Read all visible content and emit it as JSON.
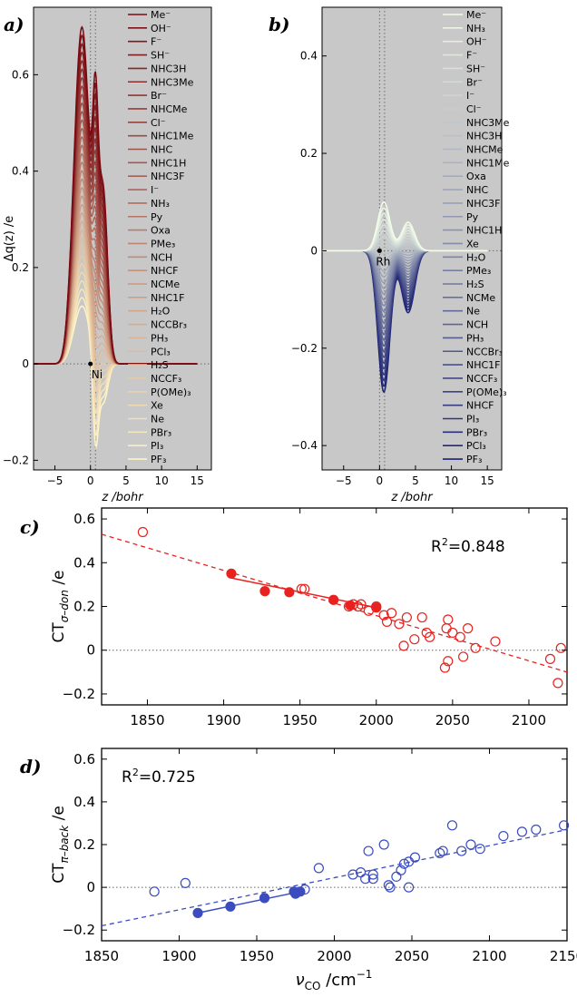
{
  "panels": {
    "a": {
      "letter": "a)",
      "ylabel": "Δq(z) /e",
      "xlabel": "z /bohr",
      "yticks": [
        "0.6",
        "0.4",
        "0.2",
        "0",
        "−0.2"
      ],
      "xticks": [
        "−5",
        "0",
        "5",
        "10",
        "15"
      ],
      "metal": "Ni",
      "legend": [
        "Me⁻",
        "OH⁻",
        "F⁻",
        "SH⁻",
        "NHC3H",
        "NHC3Me",
        "Br⁻",
        "NHCMe",
        "Cl⁻",
        "NHC1Me",
        "NHC",
        "NHC1H",
        "NHC3F",
        "I⁻",
        "NH₃",
        "Py",
        "Oxa",
        "PMe₃",
        "NCH",
        "NHCF",
        "NCMe",
        "NHC1F",
        "H₂O",
        "NCCBr₃",
        "PH₃",
        "PCl₃",
        "H₂S",
        "NCCF₃",
        "P(OMe)₃",
        "Xe",
        "Ne",
        "PBr₃",
        "PI₃",
        "PF₃"
      ]
    },
    "b": {
      "letter": "b)",
      "yticks": [
        "0.4",
        "0.2",
        "0",
        "−0.2",
        "−0.4"
      ],
      "xticks": [
        "−5",
        "0",
        "5",
        "10",
        "15"
      ],
      "xlabel": "z /bohr",
      "metal": "Rh",
      "legend": [
        "Me⁻",
        "NH₃",
        "OH⁻",
        "F⁻",
        "SH⁻",
        "Br⁻",
        "I⁻",
        "Cl⁻",
        "NHC3Me",
        "NHC3H",
        "NHCMe",
        "NHC1Me",
        "Oxa",
        "NHC",
        "NHC3F",
        "Py",
        "NHC1H",
        "Xe",
        "H₂O",
        "PMe₃",
        "H₂S",
        "NCMe",
        "Ne",
        "NCH",
        "PH₃",
        "NCCBr₃",
        "NHC1F",
        "NCCF₃",
        "P(OMe)₃",
        "NHCF",
        "PI₃",
        "PBr₃",
        "PCl₃",
        "PF₃"
      ]
    },
    "c": {
      "letter": "c)",
      "ylabel_main": "CT",
      "ylabel_sub": "σ–don",
      "ylabel_unit": " /e",
      "r2_prefix": "R",
      "r2_sup": "2",
      "r2_value": "=0.848",
      "yticks": [
        "0.6",
        "0.4",
        "0.2",
        "0",
        "−0.2"
      ],
      "xticks": [
        "1850",
        "1900",
        "1950",
        "2000",
        "2050",
        "2100"
      ]
    },
    "d": {
      "letter": "d)",
      "ylabel_main": "CT",
      "ylabel_sub": "π–back",
      "ylabel_unit": " /e",
      "r2_prefix": "R",
      "r2_sup": "2",
      "r2_value": "=0.725",
      "yticks": [
        "0.6",
        "0.4",
        "0.2",
        "0",
        "−0.2"
      ],
      "xticks": [
        "1850",
        "1900",
        "1950",
        "2000",
        "2050",
        "2100",
        "2150"
      ],
      "xlabel_main": "ν",
      "xlabel_sub": "CO",
      "xlabel_unit": " /cm",
      "xlabel_sup": "−1"
    }
  },
  "colors": {
    "panel_bg": "#c8c8c8",
    "red_dark": "#7a0a12",
    "red_light": "#fff4c6",
    "blue_light": "#f2fbe8",
    "blue_dark": "#1c2272",
    "red_points": "#e8221e",
    "blue_points": "#3b4cc0"
  },
  "chart_data": [
    {
      "type": "line",
      "panel": "a",
      "xlabel": "z /bohr",
      "ylabel": "Δq(z) /e",
      "xlim": [
        -8,
        17
      ],
      "ylim": [
        -0.22,
        0.74
      ],
      "grid": false,
      "legend_position": "right",
      "series_names": [
        "Me⁻",
        "OH⁻",
        "F⁻",
        "SH⁻",
        "NHC3H",
        "NHC3Me",
        "Br⁻",
        "NHCMe",
        "Cl⁻",
        "NHC1Me",
        "NHC",
        "NHC1H",
        "NHC3F",
        "I⁻",
        "NH₃",
        "Py",
        "Oxa",
        "PMe₃",
        "NCH",
        "NHCF",
        "NCMe",
        "NHC1F",
        "H₂O",
        "NCCBr₃",
        "PH₃",
        "PCl₃",
        "H₂S",
        "NCCF₃",
        "P(OMe)₃",
        "Xe",
        "Ne",
        "PBr₃",
        "PI₃",
        "PF₃"
      ],
      "profile_extremes": {
        "first_series": {
          "peak_z": -1.5,
          "peak": 0.7,
          "at_z0_7": 0.53,
          "second_peak_z": 1.5,
          "second_peak": 0.38,
          "tail_end_z": 9
        },
        "last_series": {
          "peak_z": -1.5,
          "peak": 0.12,
          "at_z0_7": -0.15,
          "second_peak_z": 1.5,
          "second_peak": -0.08,
          "tail_end_z": 9
        }
      },
      "marker": {
        "label": "Ni",
        "z": 0,
        "value": 0
      }
    },
    {
      "type": "line",
      "panel": "b",
      "xlabel": "z /bohr",
      "xlim": [
        -8,
        17
      ],
      "ylim": [
        -0.45,
        0.5
      ],
      "grid": false,
      "legend_position": "right",
      "series_names": [
        "Me⁻",
        "NH₃",
        "OH⁻",
        "F⁻",
        "SH⁻",
        "Br⁻",
        "I⁻",
        "Cl⁻",
        "NHC3Me",
        "NHC3H",
        "NHCMe",
        "NHC1Me",
        "Oxa",
        "NHC",
        "NHC3F",
        "Py",
        "NHC1H",
        "Xe",
        "H₂O",
        "PMe₃",
        "H₂S",
        "NCMe",
        "Ne",
        "NCH",
        "PH₃",
        "NCCBr₃",
        "NHC1F",
        "NCCF₃",
        "P(OMe)₃",
        "NHCF",
        "PI₃",
        "PBr₃",
        "PCl₃",
        "PF₃"
      ],
      "profile_extremes": {
        "first_series": {
          "min_z": 0.7,
          "min": 0.1,
          "side_peak_z": 4,
          "side_peak": 0.06
        },
        "last_series": {
          "min_z": 0.7,
          "min": -0.29,
          "side_peak_z": 4,
          "side_peak": -0.13
        }
      },
      "marker": {
        "label": "Rh",
        "z": 0,
        "value": 0
      }
    },
    {
      "type": "scatter",
      "panel": "c",
      "ylabel": "CTσ–don /e",
      "xlim": [
        1820,
        2125
      ],
      "ylim": [
        -0.25,
        0.65
      ],
      "series": [
        {
          "filled": true,
          "x": [
            1905,
            1927,
            1943,
            1972,
            1983,
            2000
          ],
          "y": [
            0.35,
            0.27,
            0.265,
            0.23,
            0.205,
            0.195
          ]
        },
        {
          "filled": false,
          "x": [
            1847,
            1951,
            1953,
            1982,
            1985,
            1988,
            1990,
            1995,
            2000,
            2005,
            2007,
            2010,
            2015,
            2018,
            2020,
            2025,
            2030,
            2033,
            2035,
            2045,
            2046,
            2047,
            2047,
            2050,
            2055,
            2057,
            2060,
            2065,
            2078,
            2114,
            2119,
            2121
          ],
          "y": [
            0.54,
            0.28,
            0.28,
            0.2,
            0.21,
            0.2,
            0.21,
            0.18,
            0.2,
            0.16,
            0.13,
            0.17,
            0.12,
            0.02,
            0.15,
            0.05,
            0.15,
            0.08,
            0.06,
            -0.08,
            0.1,
            -0.05,
            0.14,
            0.08,
            0.06,
            -0.03,
            0.1,
            0.01,
            0.04,
            -0.04,
            -0.15,
            0.01
          ]
        }
      ],
      "fit_solid": {
        "x": [
          1905,
          2000
        ],
        "y": [
          0.33,
          0.195
        ]
      },
      "fit_dashed": {
        "x": [
          1820,
          2125
        ],
        "y": [
          0.53,
          -0.1
        ]
      },
      "reference_line_y": 0,
      "annotation": "R²=0.848"
    },
    {
      "type": "scatter",
      "panel": "d",
      "ylabel": "CTπ–back /e",
      "xlabel": "νCO /cm⁻¹",
      "xlim": [
        1850,
        2150
      ],
      "ylim": [
        -0.25,
        0.65
      ],
      "series": [
        {
          "filled": true,
          "x": [
            1912,
            1933,
            1955,
            1974,
            1975,
            1978
          ],
          "y": [
            -0.12,
            -0.09,
            -0.05,
            -0.02,
            -0.03,
            -0.02
          ]
        },
        {
          "filled": false,
          "x": [
            1884,
            1904,
            1981,
            1990,
            2012,
            2017,
            2020,
            2022,
            2025,
            2025,
            2032,
            2035,
            2036,
            2040,
            2043,
            2045,
            2048,
            2048,
            2052,
            2068,
            2070,
            2076,
            2082,
            2088,
            2094,
            2109,
            2121,
            2130,
            2148
          ],
          "y": [
            -0.02,
            0.02,
            -0.01,
            0.09,
            0.06,
            0.07,
            0.04,
            0.17,
            0.04,
            0.06,
            0.2,
            0.01,
            0.0,
            0.05,
            0.08,
            0.11,
            0.0,
            0.12,
            0.14,
            0.16,
            0.17,
            0.29,
            0.17,
            0.2,
            0.18,
            0.24,
            0.26,
            0.27,
            0.29
          ]
        }
      ],
      "fit_solid": {
        "x": [
          1912,
          1978
        ],
        "y": [
          -0.12,
          -0.02
        ]
      },
      "fit_dashed": {
        "x": [
          1850,
          2150
        ],
        "y": [
          -0.18,
          0.27
        ]
      },
      "reference_line_y": 0,
      "annotation": "R²=0.725"
    }
  ]
}
